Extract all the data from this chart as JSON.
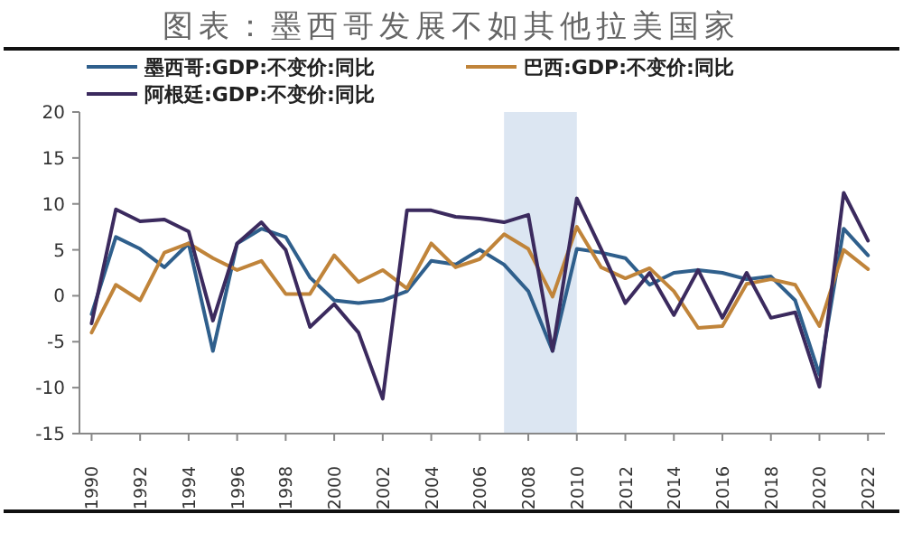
{
  "chart_data": {
    "type": "line",
    "title": "图表：墨西哥发展不如其他拉美国家",
    "x": [
      1990,
      1991,
      1992,
      1993,
      1994,
      1995,
      1996,
      1997,
      1998,
      1999,
      2000,
      2001,
      2002,
      2003,
      2004,
      2005,
      2006,
      2007,
      2008,
      2009,
      2010,
      2011,
      2012,
      2013,
      2014,
      2015,
      2016,
      2017,
      2018,
      2019,
      2020,
      2021,
      2022
    ],
    "series": [
      {
        "name": "墨西哥:GDP:不变价:同比",
        "color": "#2f5f8c",
        "values": [
          -2,
          6.4,
          5.1,
          3.1,
          5.7,
          -6,
          5.7,
          7.3,
          6.4,
          2,
          -0.5,
          -0.8,
          -0.5,
          0.5,
          3.8,
          3.4,
          5,
          3.4,
          0.5,
          -6,
          5.1,
          4.7,
          4.1,
          1.2,
          2.5,
          2.8,
          2.5,
          1.8,
          2.1,
          -0.5,
          -8.6,
          7.3,
          4.4
        ]
      },
      {
        "name": "巴西:GDP:不变价:同比",
        "color": "#c0843a",
        "values": [
          -4,
          1.2,
          -0.5,
          4.7,
          5.7,
          4.1,
          2.8,
          3.8,
          0.2,
          0.2,
          4.4,
          1.5,
          2.8,
          0.8,
          5.7,
          3.1,
          4,
          6.7,
          5.1,
          -0.1,
          7.5,
          3.1,
          1.9,
          3,
          0.5,
          -3.5,
          -3.3,
          1.3,
          1.8,
          1.2,
          -3.3,
          5,
          2.9
        ]
      },
      {
        "name": "阿根廷:GDP:不变价:同比",
        "color": "#3b2a5e",
        "values": [
          -3,
          9.4,
          8.1,
          8.3,
          7,
          -2.7,
          5.7,
          8,
          5,
          -3.4,
          -0.9,
          -4,
          -11.2,
          9.3,
          9.3,
          8.6,
          8.4,
          8,
          8.8,
          -6,
          10.6,
          5.1,
          -0.8,
          2.5,
          -2.1,
          2.8,
          -2.4,
          2.5,
          -2.4,
          -1.8,
          -9.9,
          11.2,
          6
        ]
      }
    ],
    "xlim": [
      1989.5,
      2022.7
    ],
    "xticks": [
      1990,
      1992,
      1994,
      1996,
      1998,
      2000,
      2002,
      2004,
      2006,
      2008,
      2010,
      2012,
      2014,
      2016,
      2018,
      2020,
      2022
    ],
    "ylim": [
      -15,
      20
    ],
    "yticks": [
      -15,
      -10,
      -5,
      0,
      5,
      10,
      15,
      20
    ],
    "bands": [
      {
        "axis": "x",
        "from": 2007,
        "to": 2010,
        "color": "#dce6f2"
      }
    ],
    "legend": "top left",
    "grid": false
  }
}
